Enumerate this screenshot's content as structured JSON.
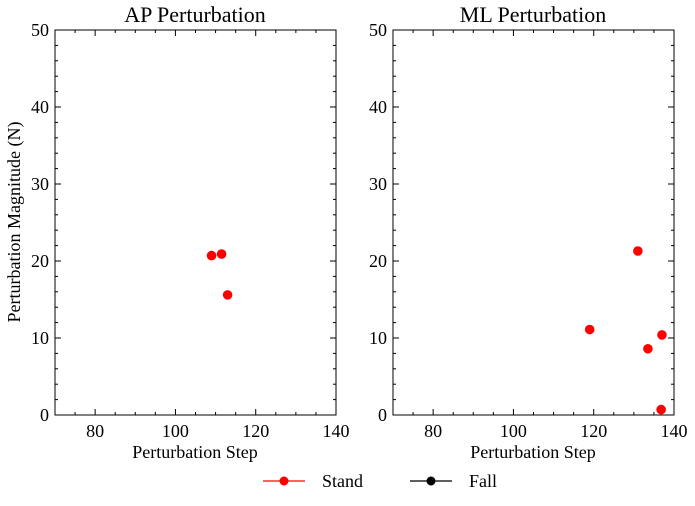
{
  "chart_data": [
    {
      "type": "scatter",
      "title": "AP Perturbation",
      "xlabel": "Perturbation Step",
      "ylabel": "Perturbation Magnitude (N)",
      "xlim": [
        70,
        140
      ],
      "ylim": [
        0,
        50
      ],
      "xticks": [
        "80",
        "100",
        "120",
        "140"
      ],
      "yticks": [
        "0",
        "10",
        "20",
        "30",
        "40",
        "50"
      ],
      "series": [
        {
          "name": "Stand",
          "color": "#ff0000",
          "points": [
            {
              "x": 109.0,
              "y": 20.7
            },
            {
              "x": 111.5,
              "y": 20.9
            },
            {
              "x": 113.0,
              "y": 15.6
            }
          ]
        },
        {
          "name": "Fall",
          "color": "#000000",
          "points": []
        }
      ]
    },
    {
      "type": "scatter",
      "title": "ML Perturbation",
      "xlabel": "Perturbation Step",
      "ylabel": "",
      "xlim": [
        70,
        140
      ],
      "ylim": [
        0,
        50
      ],
      "xticks": [
        "80",
        "100",
        "120",
        "140"
      ],
      "yticks": [
        "0",
        "10",
        "20",
        "30",
        "40",
        "50"
      ],
      "series": [
        {
          "name": "Stand",
          "color": "#ff0000",
          "points": [
            {
              "x": 119.0,
              "y": 11.1
            },
            {
              "x": 131.0,
              "y": 21.3
            },
            {
              "x": 133.5,
              "y": 8.6
            },
            {
              "x": 137.0,
              "y": 10.4
            },
            {
              "x": 136.8,
              "y": 0.7
            }
          ]
        },
        {
          "name": "Fall",
          "color": "#000000",
          "points": []
        }
      ]
    }
  ],
  "legend": {
    "items": [
      {
        "label": "Stand",
        "color": "#ff0000"
      },
      {
        "label": "Fall",
        "color": "#000000"
      }
    ]
  }
}
